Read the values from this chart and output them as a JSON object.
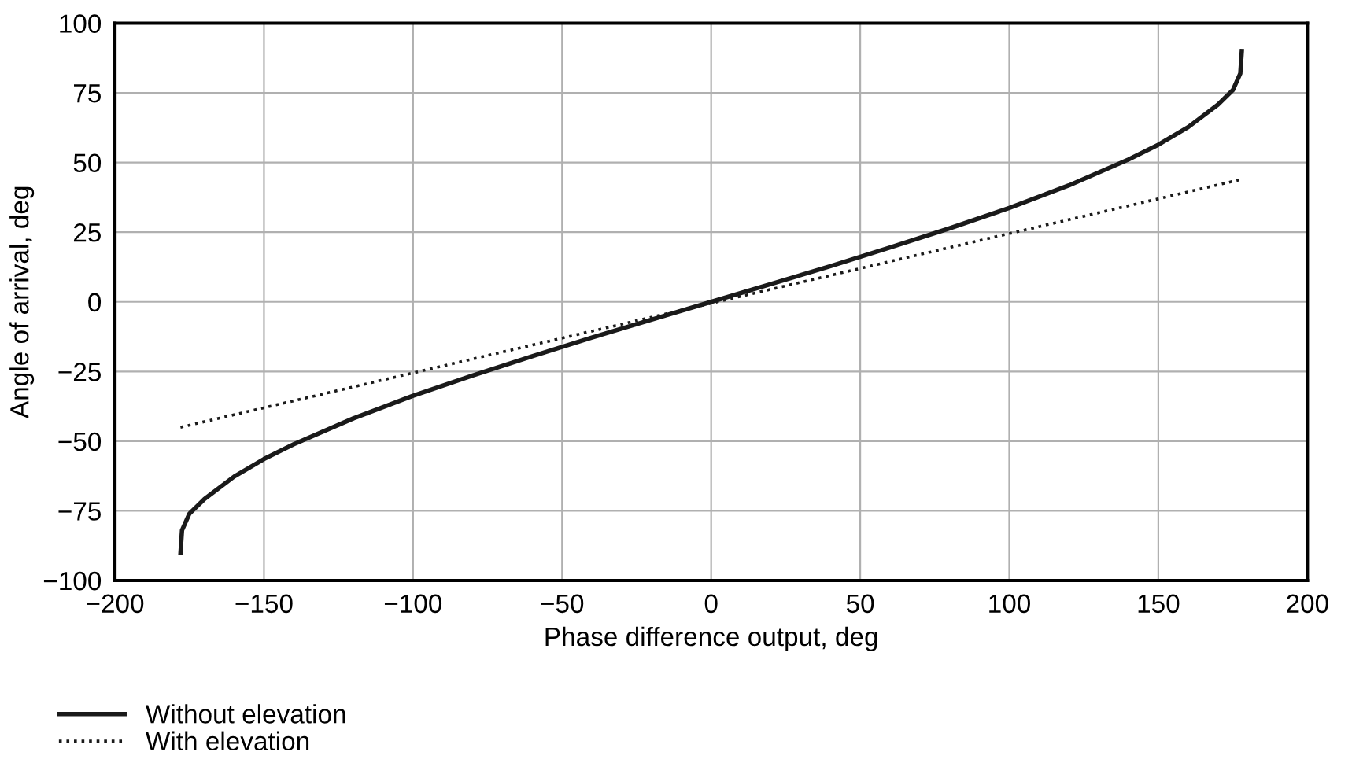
{
  "chart_data": {
    "type": "line",
    "xlabel": "Phase difference output, deg",
    "ylabel": "Angle of arrival, deg",
    "xlim": [
      -200,
      200
    ],
    "xticks": [
      {
        "value": -200,
        "label": "−200"
      },
      {
        "value": -150,
        "label": "−150"
      },
      {
        "value": -100,
        "label": "−100"
      },
      {
        "value": -50,
        "label": "−50"
      },
      0,
      50,
      100,
      150,
      200
    ],
    "ylim": [
      -100,
      100
    ],
    "yticks": [
      {
        "value": -100,
        "label": "−100"
      },
      {
        "value": -75,
        "label": "−75"
      },
      {
        "value": -50,
        "label": "−50"
      },
      {
        "value": -25,
        "label": "−25"
      },
      0,
      25,
      50,
      75,
      100
    ],
    "grid": true,
    "legend": "bottom left",
    "marker": "none",
    "series": [
      {
        "name": "Without elevation",
        "color": "#1a1a1a",
        "line_style": "solid",
        "x": [
          -178,
          -177.5,
          -175,
          -170,
          -160,
          -150,
          -140,
          -120,
          -100,
          -80,
          -60,
          -40,
          -20,
          0,
          20,
          40,
          60,
          80,
          100,
          120,
          140,
          150,
          160,
          170,
          175,
          177.5,
          178
        ],
        "values": [
          -90,
          -82,
          -76,
          -70.8,
          -62.7,
          -56.4,
          -51.1,
          -41.8,
          -33.7,
          -26.4,
          -19.5,
          -12.8,
          -6.4,
          0,
          6.4,
          12.8,
          19.5,
          26.4,
          33.7,
          41.8,
          51.1,
          56.4,
          62.7,
          70.8,
          76,
          82,
          90
        ]
      },
      {
        "name": "With elevation",
        "color": "#1a1a1a",
        "line_style": "dotted",
        "x": [
          -178,
          178
        ],
        "values": [
          -45,
          44
        ]
      }
    ]
  }
}
